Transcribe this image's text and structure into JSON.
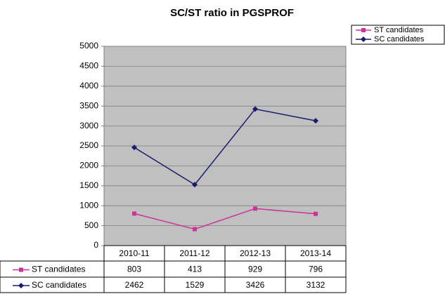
{
  "chart_data": {
    "type": "line",
    "title": "SC/ST ratio in PGSPROF",
    "categories": [
      "2010-11",
      "2011-12",
      "2012-13",
      "2013-14"
    ],
    "series": [
      {
        "name": "ST candidates",
        "color": "#cc3399",
        "marker": "square",
        "values": [
          803,
          413,
          929,
          796
        ]
      },
      {
        "name": "SC candidates",
        "color": "#1b1b6f",
        "marker": "diamond",
        "values": [
          2462,
          1529,
          3426,
          3132
        ]
      }
    ],
    "ylim": [
      0,
      5000
    ],
    "yticks": [
      0,
      500,
      1000,
      1500,
      2000,
      2500,
      3000,
      3500,
      4000,
      4500,
      5000
    ],
    "grid": true,
    "legend": "top-right",
    "data_table": true
  }
}
